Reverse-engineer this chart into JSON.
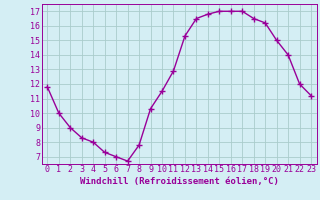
{
  "x": [
    0,
    1,
    2,
    3,
    4,
    5,
    6,
    7,
    8,
    9,
    10,
    11,
    12,
    13,
    14,
    15,
    16,
    17,
    18,
    19,
    20,
    21,
    22,
    23
  ],
  "y": [
    11.8,
    10.0,
    9.0,
    8.3,
    8.0,
    7.3,
    7.0,
    6.7,
    7.8,
    10.3,
    11.5,
    12.9,
    15.3,
    16.5,
    16.8,
    17.0,
    17.0,
    17.0,
    16.5,
    16.2,
    15.0,
    14.0,
    12.0,
    11.2
  ],
  "xlabel": "Windchill (Refroidissement éolien,°C)",
  "yticks": [
    7,
    8,
    9,
    10,
    11,
    12,
    13,
    14,
    15,
    16,
    17
  ],
  "xticks": [
    0,
    1,
    2,
    3,
    4,
    5,
    6,
    7,
    8,
    9,
    10,
    11,
    12,
    13,
    14,
    15,
    16,
    17,
    18,
    19,
    20,
    21,
    22,
    23
  ],
  "ylim": [
    6.5,
    17.5
  ],
  "xlim": [
    -0.5,
    23.5
  ],
  "line_color": "#990099",
  "marker": "+",
  "bg_color": "#d4eef4",
  "grid_color": "#aacccc",
  "label_color": "#990099",
  "xlabel_fontsize": 6.5,
  "tick_fontsize": 6.0,
  "linewidth": 1.0,
  "markersize": 4,
  "markeredgewidth": 1.0
}
